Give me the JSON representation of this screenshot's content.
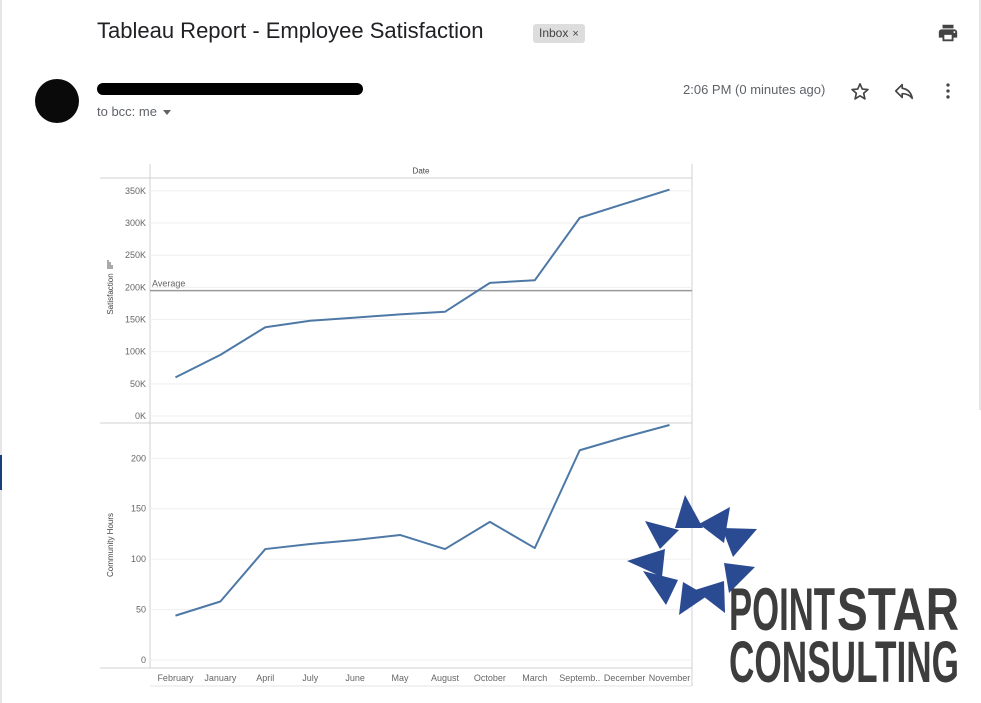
{
  "email": {
    "subject": "Tableau Report - Employee Satisfaction",
    "label": "Inbox",
    "label_close": "×",
    "recipients": "to bcc: me",
    "timestamp": "2:06 PM (0 minutes ago)"
  },
  "icons": [
    "print-icon",
    "star-icon",
    "reply-icon",
    "more-vert-icon",
    "caret-down-icon",
    "close-icon"
  ],
  "colors": {
    "series": "#4e79a7",
    "reference_line": "#9a9a9a",
    "logo_blue": "#2a4a92",
    "logo_gray": "#3d3d3d"
  },
  "chart_data": [
    {
      "type": "line",
      "title": "Date",
      "ylabel": "Satisfaction",
      "ylim": [
        0,
        370000
      ],
      "yticks": [
        "0K",
        "50K",
        "100K",
        "150K",
        "200K",
        "250K",
        "300K",
        "350K"
      ],
      "yticks_values": [
        0,
        50000,
        100000,
        150000,
        200000,
        250000,
        300000,
        350000
      ],
      "categories": [
        "February",
        "January",
        "April",
        "July",
        "June",
        "May",
        "August",
        "October",
        "March",
        "Septemb..",
        "December",
        "November"
      ],
      "values": [
        60000,
        95000,
        138000,
        148000,
        153000,
        158000,
        162000,
        207000,
        211000,
        308000,
        330000,
        352000
      ],
      "reference_line": {
        "label": "Average",
        "value": 195000
      },
      "grid": true
    },
    {
      "type": "line",
      "ylabel": "Community Hours",
      "ylim": [
        0,
        235
      ],
      "yticks": [
        "0",
        "50",
        "100",
        "150",
        "200"
      ],
      "yticks_values": [
        0,
        50,
        100,
        150,
        200
      ],
      "categories": [
        "February",
        "January",
        "April",
        "July",
        "June",
        "May",
        "August",
        "October",
        "March",
        "Septemb..",
        "December",
        "November"
      ],
      "values": [
        44,
        58,
        110,
        115,
        119,
        124,
        110,
        137,
        111,
        208,
        221,
        233
      ],
      "grid": true
    }
  ],
  "logo": {
    "word1_a": "POINT",
    "word1_b": "STAR",
    "word2": "CONSULTING"
  }
}
